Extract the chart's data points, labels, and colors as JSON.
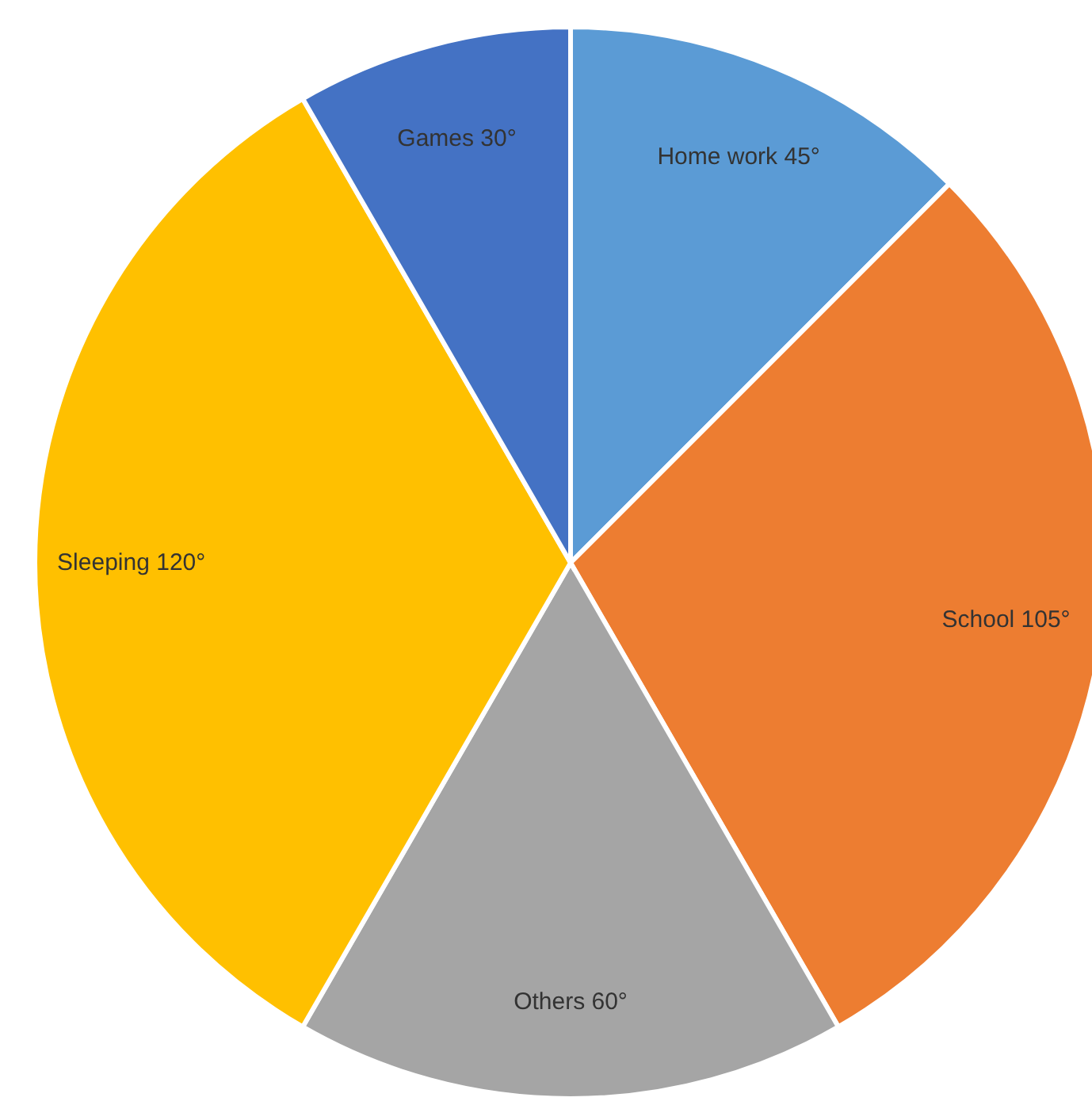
{
  "chart_data": {
    "type": "pie",
    "categories": [
      "Home work",
      "School",
      "Others",
      "Sleeping",
      "Games"
    ],
    "values": [
      45,
      105,
      60,
      120,
      30
    ],
    "colors": [
      "#5b9bd5",
      "#ed7d31",
      "#a5a5a5",
      "#ffc000",
      "#4472c4"
    ],
    "value_labels": [
      "45°",
      "105°",
      "60°",
      "120°",
      "30°"
    ]
  }
}
